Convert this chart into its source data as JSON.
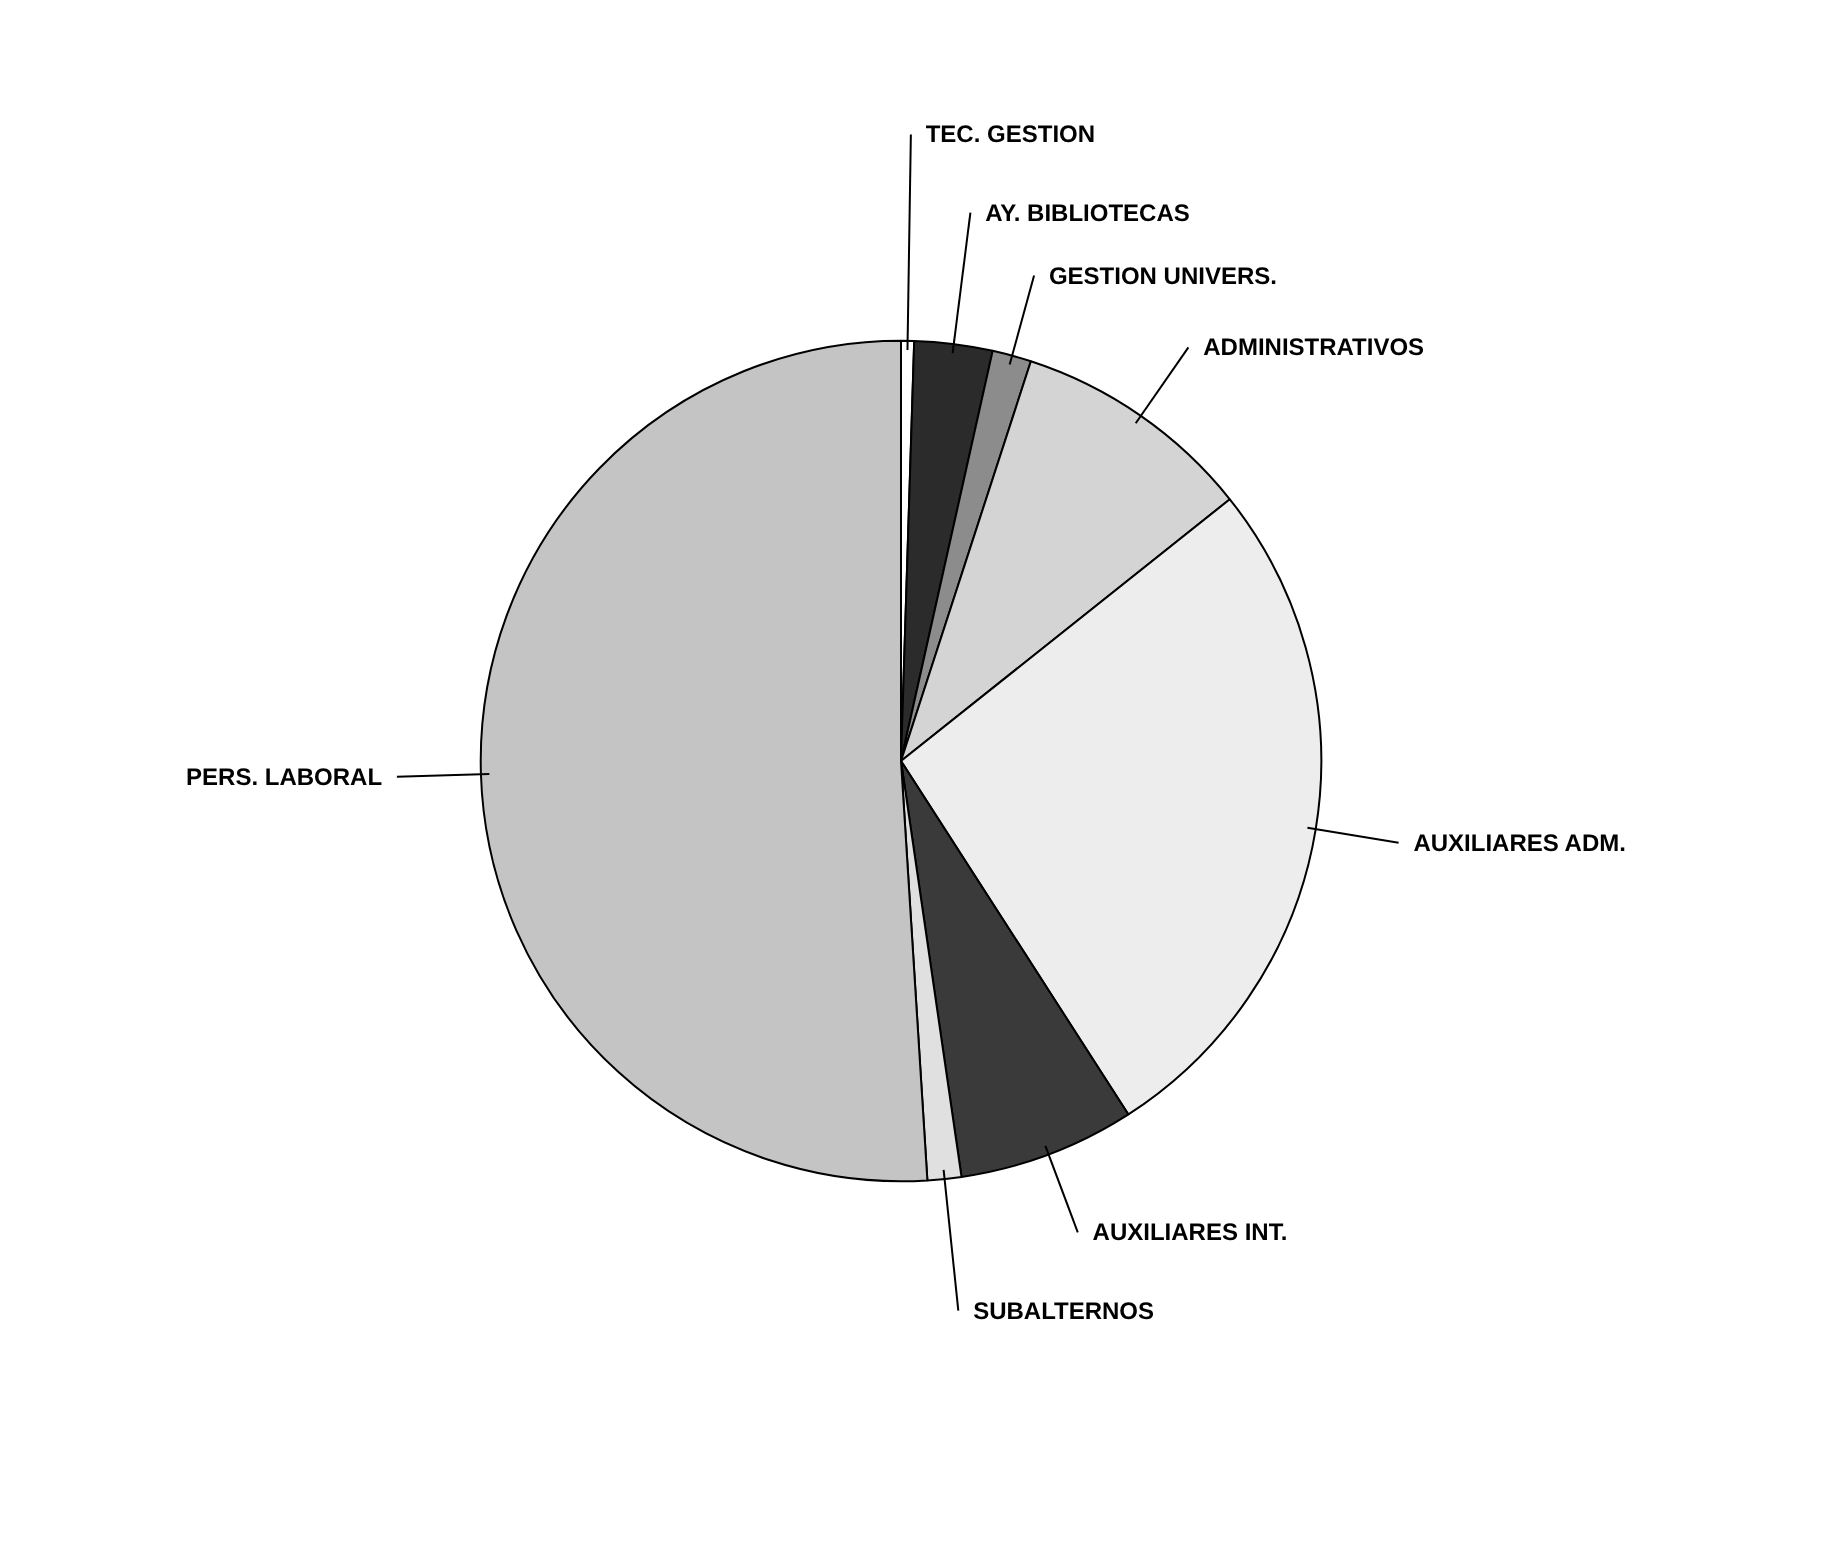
{
  "chart_data": {
    "type": "pie",
    "categories": [
      "TEC. GESTION",
      "AY. BIBLIOTECAS",
      "GESTION UNIVERS.",
      "ADMINISTRATIVOS",
      "AUXILIARES  ADM.",
      "AUXILIARES INT.",
      "SUBALTERNOS",
      "PERS. LABORAL"
    ],
    "values": [
      0.5,
      3,
      1.5,
      9.3,
      26.6,
      6.8,
      1.3,
      51
    ],
    "colors": [
      "#ffffff",
      "#2b2b2b",
      "#8c8c8c",
      "#d4d4d4",
      "#ededed",
      "#3a3a3a",
      "#e0e0e0",
      "#c4c4c4"
    ]
  }
}
